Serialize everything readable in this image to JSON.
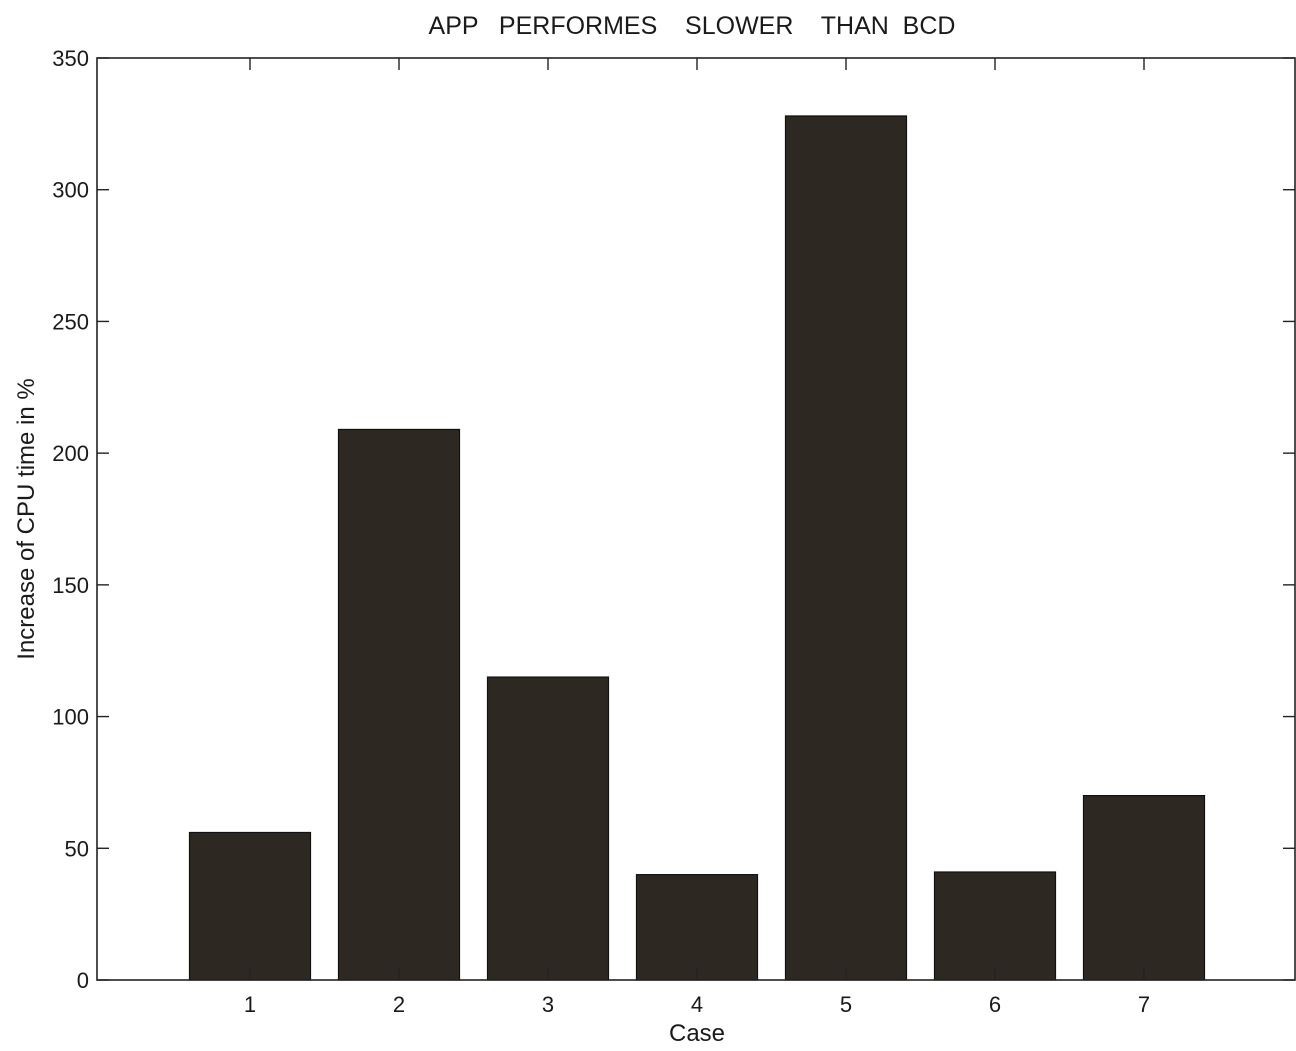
{
  "chart_data": {
    "type": "bar",
    "title": "APP   PERFORMES    SLOWER    THAN  BCD",
    "xlabel": "Case",
    "ylabel": "Increase of CPU time in %",
    "categories": [
      "1",
      "2",
      "3",
      "4",
      "5",
      "6",
      "7"
    ],
    "values": [
      56,
      209,
      115,
      40,
      328,
      41,
      70
    ],
    "ylim": [
      0,
      350
    ],
    "yticks": [
      0,
      50,
      100,
      150,
      200,
      250,
      300,
      350
    ],
    "ytick_labels": [
      "0",
      "50",
      "100",
      "150",
      "200",
      "250",
      "300",
      "350"
    ],
    "grid": false,
    "legend": "none",
    "bar_color": "#2e2822",
    "axis_color": "#222222"
  }
}
